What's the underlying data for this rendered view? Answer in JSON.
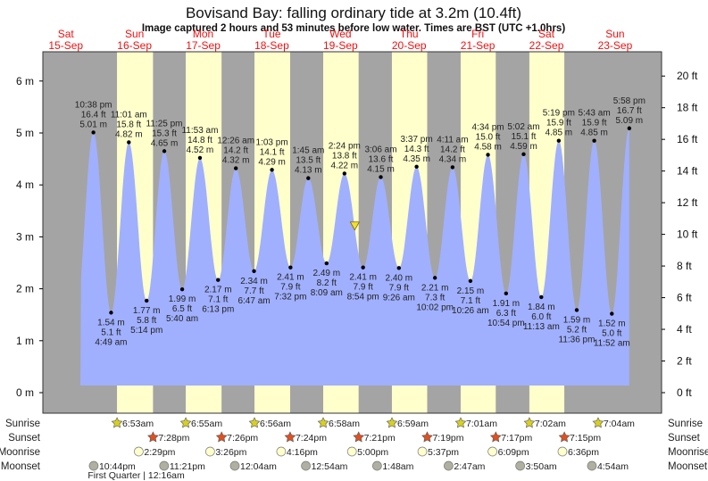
{
  "chart_data": {
    "type": "area",
    "title": "Bovisand Bay: falling  ordinary tide at 3.2m (10.4ft)",
    "subtitle": "Image captured 2 hours and 53 minutes before low water. Times are BST (UTC +1.0hrs)",
    "left_axis": {
      "unit": "m",
      "ticks": [
        0,
        1,
        2,
        3,
        4,
        5,
        6
      ],
      "ylim": [
        -0.45,
        6.95
      ]
    },
    "right_axis": {
      "unit": "ft",
      "ticks": [
        0,
        2,
        4,
        6,
        8,
        10,
        12,
        14,
        16,
        18,
        20
      ]
    },
    "days": [
      {
        "dow": "Sat",
        "date": "15-Sep"
      },
      {
        "dow": "Sun",
        "date": "16-Sep"
      },
      {
        "dow": "Mon",
        "date": "17-Sep"
      },
      {
        "dow": "Tue",
        "date": "18-Sep"
      },
      {
        "dow": "Wed",
        "date": "19-Sep"
      },
      {
        "dow": "Thu",
        "date": "20-Sep"
      },
      {
        "dow": "Fri",
        "date": "21-Sep"
      },
      {
        "dow": "Sat",
        "date": "22-Sep"
      },
      {
        "dow": "Sun",
        "date": "23-Sep"
      }
    ],
    "extremes": [
      {
        "type": "high",
        "day": -1,
        "time": "10:38 pm",
        "ft": "16.4 ft",
        "m": "5.01 m",
        "h": 5.01
      },
      {
        "type": "low",
        "day": 0,
        "time": "4:49 am",
        "ft": "5.1 ft",
        "m": "1.54 m",
        "h": 1.54
      },
      {
        "type": "high",
        "day": 0,
        "time": "11:01 am",
        "ft": "15.8 ft",
        "m": "4.82 m",
        "h": 4.82
      },
      {
        "type": "low",
        "day": 0,
        "time": "5:14 pm",
        "ft": "5.8 ft",
        "m": "1.77 m",
        "h": 1.77
      },
      {
        "type": "high",
        "day": 0,
        "time": "11:25 pm",
        "ft": "15.3 ft",
        "m": "4.65 m",
        "h": 4.65
      },
      {
        "type": "low",
        "day": 1,
        "time": "5:40 am",
        "ft": "6.5 ft",
        "m": "1.99 m",
        "h": 1.99
      },
      {
        "type": "high",
        "day": 1,
        "time": "11:53 am",
        "ft": "14.8 ft",
        "m": "4.52 m",
        "h": 4.52
      },
      {
        "type": "low",
        "day": 1,
        "time": "6:13 pm",
        "ft": "7.1 ft",
        "m": "2.17 m",
        "h": 2.17
      },
      {
        "type": "high",
        "day": 2,
        "time": "12:26 am",
        "ft": "14.2 ft",
        "m": "4.32 m",
        "h": 4.32
      },
      {
        "type": "low",
        "day": 2,
        "time": "6:47 am",
        "ft": "7.7 ft",
        "m": "2.34 m",
        "h": 2.34
      },
      {
        "type": "high",
        "day": 2,
        "time": "1:03 pm",
        "ft": "14.1 ft",
        "m": "4.29 m",
        "h": 4.29
      },
      {
        "type": "low",
        "day": 2,
        "time": "7:32 pm",
        "ft": "7.9 ft",
        "m": "2.41 m",
        "h": 2.41
      },
      {
        "type": "high",
        "day": 3,
        "time": "1:45 am",
        "ft": "13.5 ft",
        "m": "4.13 m",
        "h": 4.13
      },
      {
        "type": "low",
        "day": 3,
        "time": "8:09 am",
        "ft": "8.2 ft",
        "m": "2.49 m",
        "h": 2.49
      },
      {
        "type": "high",
        "day": 3,
        "time": "2:24 pm",
        "ft": "13.8 ft",
        "m": "4.22 m",
        "h": 4.22
      },
      {
        "type": "low",
        "day": 3,
        "time": "8:54 pm",
        "ft": "7.9 ft",
        "m": "2.41 m",
        "h": 2.41
      },
      {
        "type": "high",
        "day": 4,
        "time": "3:06 am",
        "ft": "13.6 ft",
        "m": "4.15 m",
        "h": 4.15
      },
      {
        "type": "low",
        "day": 4,
        "time": "9:26 am",
        "ft": "7.9 ft",
        "m": "2.40 m",
        "h": 2.4
      },
      {
        "type": "high",
        "day": 4,
        "time": "3:37 pm",
        "ft": "14.3 ft",
        "m": "4.35 m",
        "h": 4.35
      },
      {
        "type": "low",
        "day": 4,
        "time": "10:02 pm",
        "ft": "7.3 ft",
        "m": "2.21 m",
        "h": 2.21
      },
      {
        "type": "high",
        "day": 5,
        "time": "4:11 am",
        "ft": "14.2 ft",
        "m": "4.34 m",
        "h": 4.34
      },
      {
        "type": "low",
        "day": 5,
        "time": "10:26 am",
        "ft": "7.1 ft",
        "m": "2.15 m",
        "h": 2.15
      },
      {
        "type": "high",
        "day": 5,
        "time": "4:34 pm",
        "ft": "15.0 ft",
        "m": "4.58 m",
        "h": 4.58
      },
      {
        "type": "low",
        "day": 5,
        "time": "10:54 pm",
        "ft": "6.3 ft",
        "m": "1.91 m",
        "h": 1.91
      },
      {
        "type": "high",
        "day": 6,
        "time": "5:02 am",
        "ft": "15.1 ft",
        "m": "4.59 m",
        "h": 4.59
      },
      {
        "type": "low",
        "day": 6,
        "time": "11:13 am",
        "ft": "6.0 ft",
        "m": "1.84 m",
        "h": 1.84
      },
      {
        "type": "high",
        "day": 6,
        "time": "5:19 pm",
        "ft": "15.9 ft",
        "m": "4.85 m",
        "h": 4.85
      },
      {
        "type": "low",
        "day": 6,
        "time": "11:36 pm",
        "ft": "5.2 ft",
        "m": "1.59 m",
        "h": 1.59
      },
      {
        "type": "high",
        "day": 7,
        "time": "5:43 am",
        "ft": "15.9 ft",
        "m": "4.85 m",
        "h": 4.85
      },
      {
        "type": "low",
        "day": 7,
        "time": "11:52 am",
        "ft": "5.0 ft",
        "m": "1.52 m",
        "h": 1.52
      },
      {
        "type": "high",
        "day": 7,
        "time": "5:58 pm",
        "ft": "16.7 ft",
        "m": "5.09 m",
        "h": 5.09
      }
    ],
    "current": {
      "day": 3,
      "time": "6:00 pm",
      "h": 3.2
    },
    "rows": {
      "sunrise": {
        "label": "Sunrise",
        "events": [
          {
            "day": 0,
            "time": "6:53am"
          },
          {
            "day": 1,
            "time": "6:55am"
          },
          {
            "day": 2,
            "time": "6:56am"
          },
          {
            "day": 3,
            "time": "6:58am"
          },
          {
            "day": 4,
            "time": "6:59am"
          },
          {
            "day": 5,
            "time": "7:01am"
          },
          {
            "day": 6,
            "time": "7:02am"
          },
          {
            "day": 7,
            "time": "7:04am"
          }
        ]
      },
      "sunset": {
        "label": "Sunset",
        "events": [
          {
            "day": 0,
            "time": "7:28pm"
          },
          {
            "day": 1,
            "time": "7:26pm"
          },
          {
            "day": 2,
            "time": "7:24pm"
          },
          {
            "day": 3,
            "time": "7:21pm"
          },
          {
            "day": 4,
            "time": "7:19pm"
          },
          {
            "day": 5,
            "time": "7:17pm"
          },
          {
            "day": 6,
            "time": "7:15pm"
          }
        ]
      },
      "moonrise": {
        "label": "Moonrise",
        "events": [
          {
            "day": 0,
            "time": "2:29pm"
          },
          {
            "day": 1,
            "time": "3:26pm"
          },
          {
            "day": 2,
            "time": "4:16pm"
          },
          {
            "day": 3,
            "time": "5:00pm"
          },
          {
            "day": 4,
            "time": "5:37pm"
          },
          {
            "day": 5,
            "time": "6:09pm"
          },
          {
            "day": 6,
            "time": "6:36pm"
          }
        ]
      },
      "moonset": {
        "label": "Moonset",
        "events": [
          {
            "day": -1,
            "time": "10:44pm"
          },
          {
            "day": 0,
            "time": "11:21pm"
          },
          {
            "day": 2,
            "time": "12:04am"
          },
          {
            "day": 3,
            "time": "12:54am"
          },
          {
            "day": 4,
            "time": "1:48am"
          },
          {
            "day": 5,
            "time": "2:47am"
          },
          {
            "day": 6,
            "time": "3:50am"
          },
          {
            "day": 7,
            "time": "4:54am"
          }
        ]
      }
    },
    "moon_phase": {
      "label": "First Quarter | 12:16am",
      "day": 1,
      "time": "12:16am"
    },
    "colors": {
      "water": "#a0b0ff",
      "night": "#a4a4a4",
      "day": "#ffffcc",
      "sunrise": "#d8d020",
      "sunset": "#e05020",
      "moonrise": "#ffffcc",
      "moonset": "#b0b0a0",
      "day_label": "#f01010"
    }
  }
}
